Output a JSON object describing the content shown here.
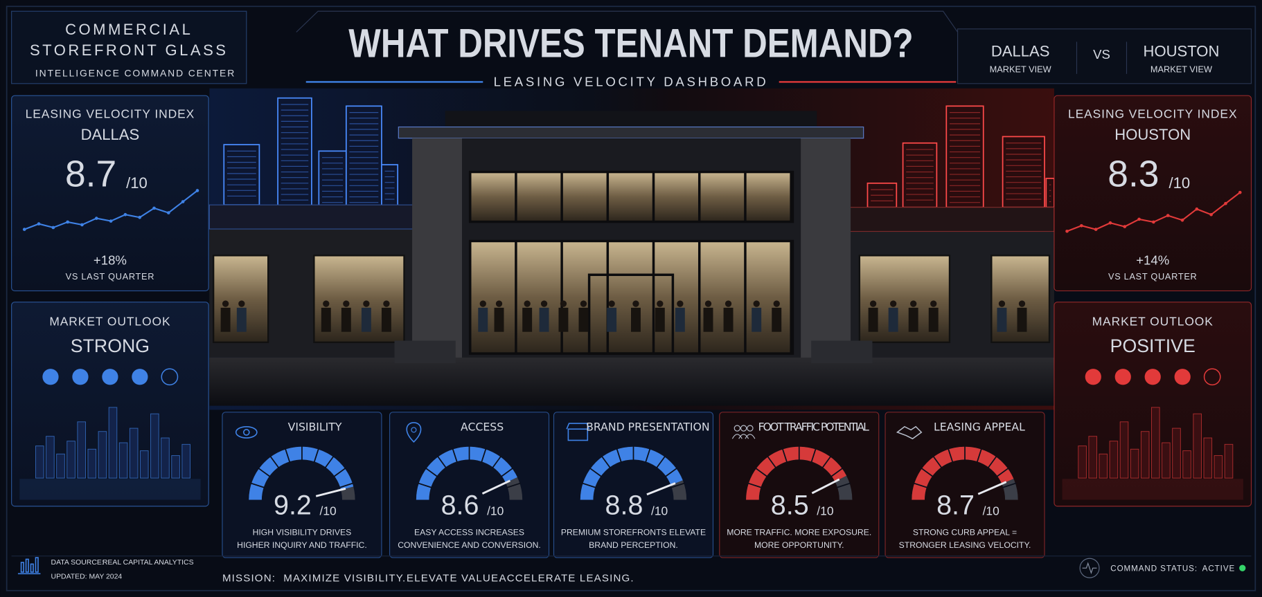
{
  "header": {
    "brand_lines": [
      "COMMERCIAL",
      "STOREFRONT GLASS"
    ],
    "brand_sub": "INTELLIGENCE COMMAND CENTER",
    "title": "WHAT DRIVES TENANT DEMAND?",
    "subtitle": "LEASING VELOCITY DASHBOARD",
    "compare": {
      "left": {
        "city": "DALLAS",
        "label": "MARKET VIEW",
        "color": "#3f82e6"
      },
      "vs": "VS",
      "right": {
        "city": "HOUSTON",
        "label": "MARKET VIEW",
        "color": "#e23a3a"
      }
    }
  },
  "markets": [
    {
      "index_title": "LEASING VELOCITY INDEX",
      "city": "DALLAS",
      "score": 8.7,
      "score_max": "/10",
      "trend": [
        3.0,
        3.6,
        3.2,
        3.8,
        3.5,
        4.2,
        3.9,
        4.6,
        4.3,
        5.3,
        4.8,
        6.0,
        7.2
      ],
      "change": "+18%",
      "change_label": "VS LAST QUARTER",
      "outlook_title": "MARKET OUTLOOK",
      "outlook": "STRONG",
      "outlook_level": 4,
      "outlook_scale": 5,
      "color": "#3f82e6"
    },
    {
      "index_title": "LEASING VELOCITY INDEX",
      "city": "HOUSTON",
      "score": 8.3,
      "score_max": "/10",
      "trend": [
        2.8,
        3.4,
        3.0,
        3.7,
        3.3,
        4.1,
        3.8,
        4.5,
        4.0,
        5.2,
        4.6,
        5.8,
        7.0
      ],
      "change": "+14%",
      "change_label": "VS LAST QUARTER",
      "outlook_title": "MARKET OUTLOOK",
      "outlook": "POSITIVE",
      "outlook_level": 4,
      "outlook_scale": 5,
      "color": "#e23a3a"
    }
  ],
  "gauge_range": [
    0,
    10
  ],
  "drivers": [
    {
      "title": "VISIBILITY",
      "score": 9.2,
      "score_max": "/10",
      "description": [
        "HIGH VISIBILITY DRIVES",
        "HIGHER INQUIRY AND TRAFFIC."
      ],
      "color": "#3f82e6"
    },
    {
      "title": "ACCESS",
      "score": 8.6,
      "score_max": "/10",
      "description": [
        "EASY ACCESS INCREASES",
        "CONVENIENCE AND CONVERSION."
      ],
      "color": "#3f82e6"
    },
    {
      "title": "BRAND PRESENTATION",
      "score": 8.8,
      "score_max": "/10",
      "description": [
        "PREMIUM STOREFRONTS ELEVATE",
        "BRAND PERCEPTION."
      ],
      "color": "#3f82e6"
    },
    {
      "title": "FOOT TRAFFIC POTENTIAL",
      "score": 8.5,
      "score_max": "/10",
      "description": [
        "MORE TRAFFIC. MORE EXPOSURE.",
        "MORE OPPORTUNITY."
      ],
      "color": "#d63a3a"
    },
    {
      "title": "LEASING APPEAL",
      "score": 8.7,
      "score_max": "/10",
      "description": [
        "STRONG CURB APPEAL =",
        "STRONGER LEASING VELOCITY."
      ],
      "color": "#d63a3a"
    }
  ],
  "footer": {
    "source_label": "DATA SOURCE:",
    "source": "REAL CAPITAL ANALYTICS",
    "updated": "UPDATED: MAY 2024",
    "mission_label": "MISSION:",
    "mission": [
      "MAXIMIZE VISIBILITY.",
      "ELEVATE VALUE.",
      "ACCELERATE LEASING."
    ],
    "status_label": "COMMAND STATUS:",
    "status": "ACTIVE"
  }
}
